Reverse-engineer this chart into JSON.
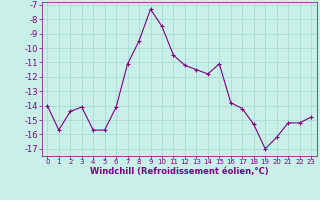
{
  "x": [
    0,
    1,
    2,
    3,
    4,
    5,
    6,
    7,
    8,
    9,
    10,
    11,
    12,
    13,
    14,
    15,
    16,
    17,
    18,
    19,
    20,
    21,
    22,
    23
  ],
  "y": [
    -14.0,
    -15.7,
    -14.4,
    -14.1,
    -15.7,
    -15.7,
    -14.1,
    -11.1,
    -9.5,
    -7.3,
    -8.5,
    -10.5,
    -11.2,
    -11.5,
    -11.8,
    -11.1,
    -13.8,
    -14.2,
    -15.3,
    -17.0,
    -16.2,
    -15.2,
    -15.2,
    -14.8
  ],
  "line_color": "#800080",
  "marker": "s",
  "marker_size": 2,
  "background_color": "#c8f0e8",
  "grid_color": "#a0d8cf",
  "xlabel": "Windchill (Refroidissement éolien,°C)",
  "xlabel_color": "#800080",
  "tick_color": "#800080",
  "ylim": [
    -17.5,
    -6.8
  ],
  "xlim": [
    -0.5,
    23.5
  ],
  "yticks": [
    -7,
    -8,
    -9,
    -10,
    -11,
    -12,
    -13,
    -14,
    -15,
    -16,
    -17
  ],
  "xticks": [
    0,
    1,
    2,
    3,
    4,
    5,
    6,
    7,
    8,
    9,
    10,
    11,
    12,
    13,
    14,
    15,
    16,
    17,
    18,
    19,
    20,
    21,
    22,
    23
  ],
  "ytick_fontsize": 6.0,
  "xtick_fontsize": 5.0,
  "xlabel_fontsize": 6.0
}
